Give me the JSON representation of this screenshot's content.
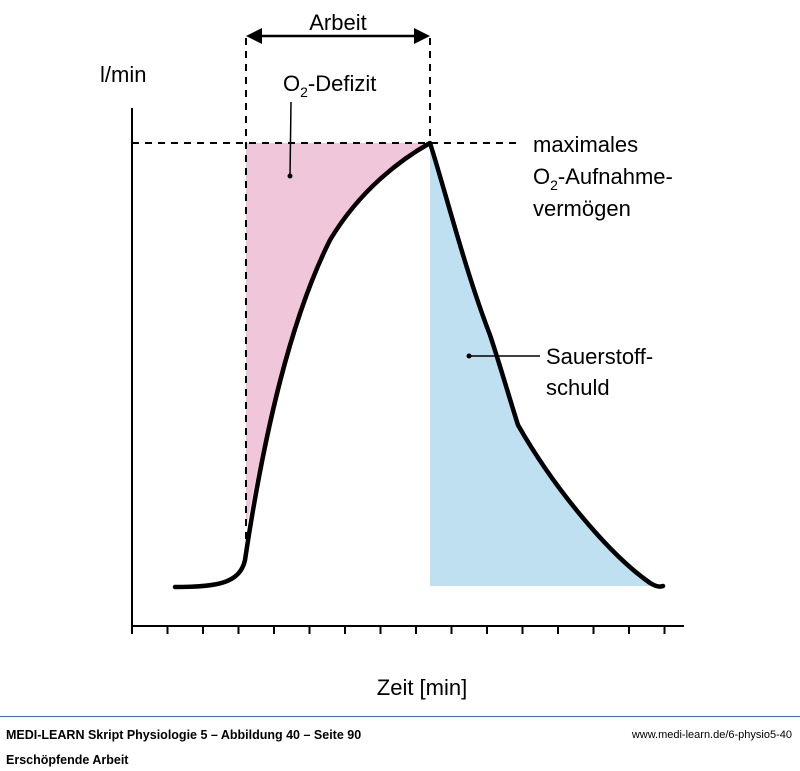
{
  "labels": {
    "y_unit": "l/min",
    "x_axis": "Zeit [min]",
    "arbeit": "Arbeit",
    "deficit_pre": "O",
    "deficit_sub": "2",
    "deficit_post": "-Defizit",
    "vo2max_line1": "maximales",
    "vo2max_line2_pre": "O",
    "vo2max_line2_sub": "2",
    "vo2max_line2_post": "-Aufnahme-",
    "vo2max_line3": "vermögen",
    "debt_line1": "Sauerstoff-",
    "debt_line2": "schuld"
  },
  "colors": {
    "deficit": "#f0c6da",
    "debt": "#bfe0f0",
    "line": "#000000",
    "footer_rule": "#3b6fb0"
  },
  "footer": {
    "title": "MEDI-LEARN Skript Physiologie 5 – Abbildung 40 – Seite 90",
    "caption": "Erschöpfende Arbeit",
    "url": "www.medi-learn.de/6-physio5-40"
  }
}
